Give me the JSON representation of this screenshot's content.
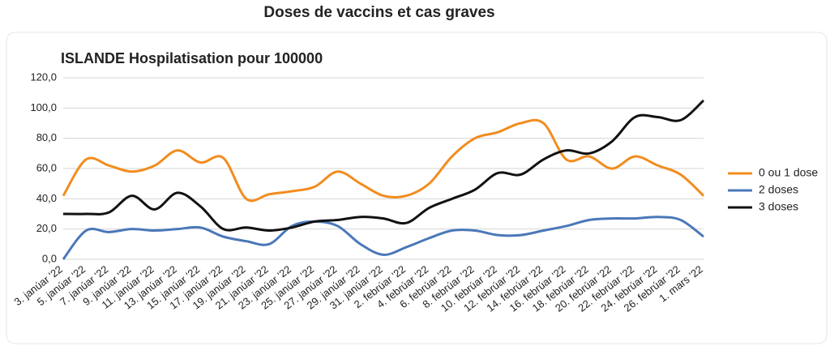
{
  "header": {
    "title": "Doses de vaccins et cas graves"
  },
  "chart_data": {
    "type": "line",
    "title": "ISLANDE Hospilatisation pour 100000",
    "categories": [
      "3. janúar '22",
      "5. janúar '22",
      "7. janúar '22",
      "9. janúar '22",
      "11. janúar '22",
      "13. janúar '22",
      "15. janúar '22",
      "17. janúar '22",
      "19. janúar '22",
      "21. janúar '22",
      "23. janúar '22",
      "25. janúar '22",
      "27. janúar '22",
      "29. janúar '22",
      "31. janúar '22",
      "2. febrúar '22",
      "4. febrúar '22",
      "6. febrúar '22",
      "8. febrúar '22",
      "10. febrúar '22",
      "12. febrúar '22",
      "14. febrúar '22",
      "16. febrúar '22",
      "18. febrúar '22",
      "20. febrúar '22",
      "22. febrúar '22",
      "24. febrúar '22",
      "26. febrúar '22",
      "1. mars '22"
    ],
    "series": [
      {
        "name": "0 ou 1 dose",
        "color": "#f28c1e",
        "values": [
          42,
          66,
          62,
          58,
          62,
          72,
          64,
          67,
          40,
          43,
          45,
          48,
          58,
          50,
          42,
          42,
          50,
          68,
          80,
          84,
          90,
          90,
          66,
          68,
          60,
          68,
          62,
          56,
          42
        ]
      },
      {
        "name": "2 doses",
        "color": "#4a78b8",
        "values": [
          0,
          19,
          18,
          20,
          19,
          20,
          21,
          15,
          12,
          10,
          22,
          25,
          22,
          10,
          3,
          8,
          14,
          19,
          19,
          16,
          16,
          19,
          22,
          26,
          27,
          27,
          28,
          26,
          15
        ]
      },
      {
        "name": "3 doses",
        "color": "#111111",
        "values": [
          30,
          30,
          31,
          42,
          33,
          44,
          35,
          20,
          21,
          19,
          21,
          25,
          26,
          28,
          27,
          24,
          34,
          40,
          46,
          57,
          56,
          66,
          72,
          70,
          78,
          94,
          94,
          92,
          105
        ]
      }
    ],
    "ylim": [
      0,
      120
    ],
    "yticks": [
      {
        "value": 0,
        "label": "0,0"
      },
      {
        "value": 20,
        "label": "20,0"
      },
      {
        "value": 40,
        "label": "40,0"
      },
      {
        "value": 60,
        "label": "60,0"
      },
      {
        "value": 80,
        "label": "80,0"
      },
      {
        "value": 100,
        "label": "100,0"
      },
      {
        "value": 120,
        "label": "120,0"
      }
    ],
    "grid": true,
    "legend": "right"
  }
}
